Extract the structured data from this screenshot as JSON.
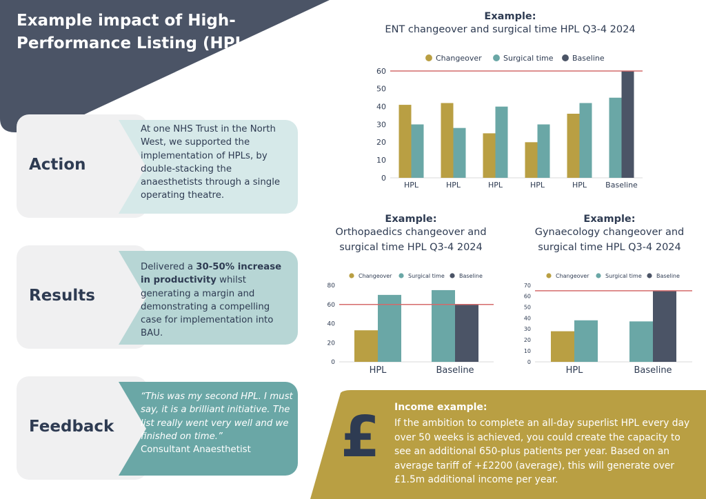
{
  "header": {
    "title": "Example impact of High-Performance Listing (HPLs)"
  },
  "colors": {
    "navy": "#4b5466",
    "gold": "#b99f43",
    "teal": "#6aa7a6",
    "light_teal": "#d6e9e9",
    "mid_teal": "#b7d6d5",
    "baseline_line": "#d46a6a"
  },
  "cards": [
    {
      "label": "Action",
      "text": "At one NHS Trust in the North West, we supported the implementation of HPLs, by double-stacking the anaesthetists through a single operating theatre."
    },
    {
      "label": "Results",
      "text_pre": "Delivered a ",
      "text_bold": "30-50% increase in productivity",
      "text_post": " whilst generating a margin and demonstrating a compelling case for implementation into BAU."
    },
    {
      "label": "Feedback",
      "quote": "“This was my second HPL. I must say, it is a brilliant initiative. The list really went very well and we finished on time.”",
      "attribution": "Consultant Anaesthetist"
    }
  ],
  "legend": {
    "changeover": "Changeover",
    "surgical": "Surgical time",
    "baseline": "Baseline"
  },
  "chart_data": [
    {
      "type": "bar",
      "example_label": "Example:",
      "title": "ENT changeover and surgical time HPL Q3-4 2024",
      "categories": [
        "HPL",
        "HPL",
        "HPL",
        "HPL",
        "HPL",
        "Baseline"
      ],
      "series": [
        {
          "name": "Changeover",
          "values": [
            41,
            42,
            25,
            20,
            36,
            null
          ]
        },
        {
          "name": "Surgical time",
          "values": [
            30,
            28,
            40,
            30,
            42,
            45
          ]
        },
        {
          "name": "Baseline",
          "values": [
            null,
            null,
            null,
            null,
            null,
            60
          ]
        }
      ],
      "reference_line": 60,
      "ylim": [
        0,
        60
      ],
      "yticks": [
        0,
        10,
        20,
        30,
        40,
        50,
        60
      ],
      "legend_position": "top"
    },
    {
      "type": "bar",
      "example_label": "Example:",
      "title": "Orthopaedics changeover and surgical time HPL Q3-4 2024",
      "categories": [
        "HPL",
        "Baseline"
      ],
      "series": [
        {
          "name": "Changeover",
          "values": [
            33,
            null
          ]
        },
        {
          "name": "Surgical time",
          "values": [
            70,
            75
          ]
        },
        {
          "name": "Baseline",
          "values": [
            null,
            60
          ]
        }
      ],
      "reference_line": 60,
      "ylim": [
        0,
        80
      ],
      "yticks": [
        0,
        20,
        40,
        60,
        80
      ],
      "legend_position": "top"
    },
    {
      "type": "bar",
      "example_label": "Example:",
      "title": "Gynaecology changeover and surgical time HPL Q3-4 2024",
      "categories": [
        "HPL",
        "Baseline"
      ],
      "series": [
        {
          "name": "Changeover",
          "values": [
            28,
            null
          ]
        },
        {
          "name": "Surgical time",
          "values": [
            38,
            37
          ]
        },
        {
          "name": "Baseline",
          "values": [
            null,
            65
          ]
        }
      ],
      "reference_line": 65,
      "ylim": [
        0,
        70
      ],
      "yticks": [
        0,
        10,
        20,
        30,
        40,
        50,
        60,
        70
      ],
      "legend_position": "top"
    }
  ],
  "income": {
    "symbol": "£",
    "title": "Income example:",
    "text": "If the ambition to complete an all-day superlist HPL every day over 50 weeks is achieved, you could create the capacity to see an additional 650-plus patients per year. Based on an average tariff of +£2200 (average), this will generate over £1.5m additional income per year."
  }
}
